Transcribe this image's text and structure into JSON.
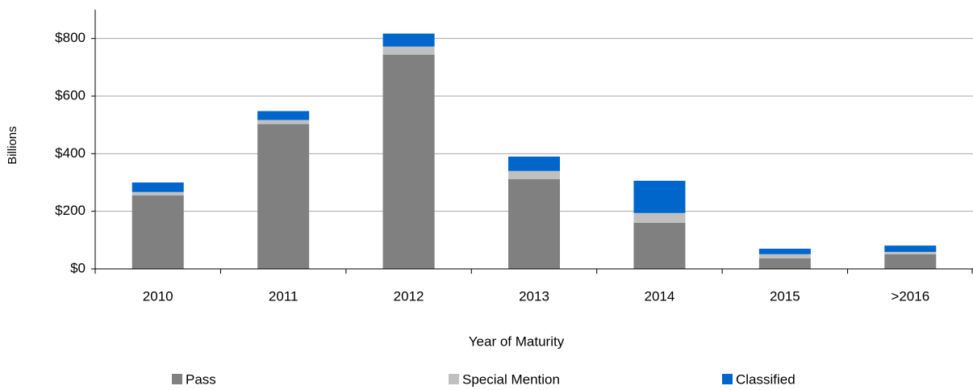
{
  "chart_data": {
    "type": "stacked_bar",
    "y_label": "Billions",
    "x_label": "Year of Maturity",
    "categories": [
      "2010",
      "2011",
      "2012",
      "2013",
      "2014",
      "2015",
      ">2016"
    ],
    "series": [
      {
        "name": "Pass",
        "color": "#808080",
        "values": [
          255,
          503,
          744,
          312,
          160,
          37,
          51
        ]
      },
      {
        "name": "Special Mention",
        "color": "#c0c0c0",
        "values": [
          12,
          14,
          28,
          28,
          34,
          14,
          8
        ]
      },
      {
        "name": "Classified",
        "color": "#0066cc",
        "values": [
          33,
          31,
          45,
          50,
          112,
          19,
          22
        ]
      }
    ],
    "ylim": [
      0,
      900
    ],
    "yticks": [
      {
        "value": 0,
        "label": "$0"
      },
      {
        "value": 200,
        "label": "$200"
      },
      {
        "value": 400,
        "label": "$400"
      },
      {
        "value": 600,
        "label": "$600"
      },
      {
        "value": 800,
        "label": "$800"
      }
    ],
    "grid": true
  }
}
